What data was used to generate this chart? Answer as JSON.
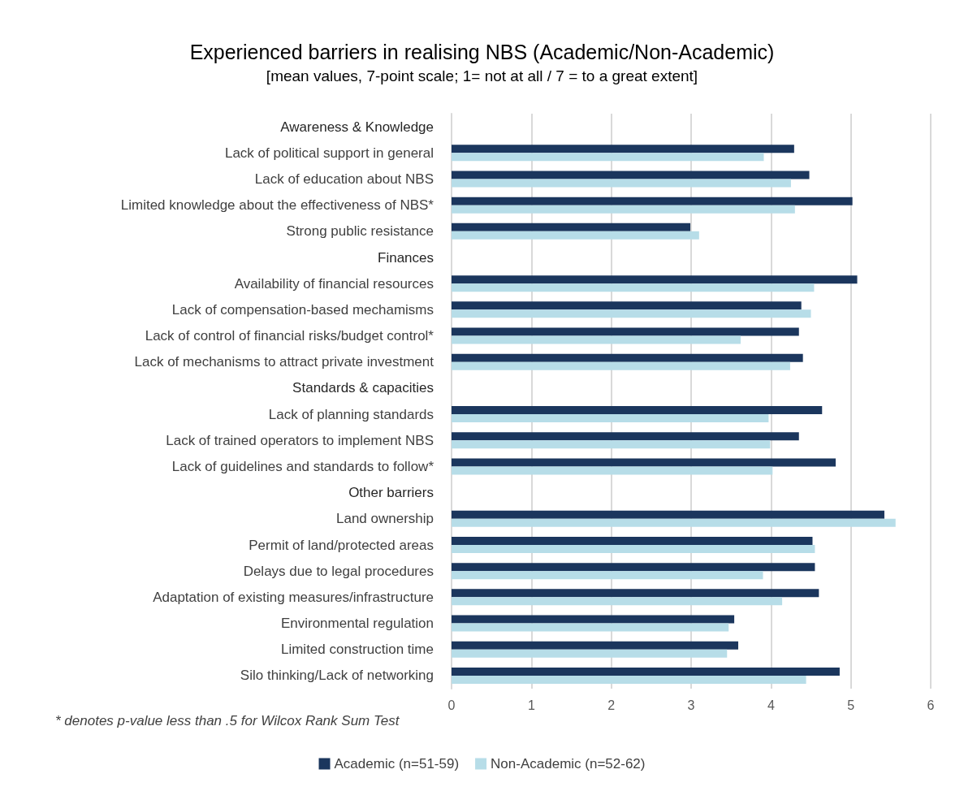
{
  "chart_data": {
    "type": "bar",
    "orientation": "horizontal",
    "title": "Experienced barriers in realising NBS (Academic/Non-Academic)",
    "subtitle": "[mean values, 7-point scale; 1= not at all / 7 = to a great extent]",
    "categories": [
      "Awareness & Knowledge",
      "Lack of political support in general",
      "Lack of education about NBS",
      "Limited knowledge about the effectiveness of NBS*",
      "Strong public resistance",
      "Finances",
      "Availability of financial resources",
      "Lack of compensation-based mechamisms",
      "Lack of control of financial risks/budget control*",
      "Lack of mechanisms to attract private investment",
      "Standards & capacities",
      "Lack of planning standards",
      "Lack of trained operators to implement NBS",
      "Lack of guidelines and standards to follow*",
      "Other barriers",
      "Land ownership",
      "Permit of land/protected areas",
      "Delays due to legal procedures",
      "Adaptation of existing measures/infrastructure",
      "Environmental regulation",
      "Limited construction time",
      "Silo thinking/Lack of networking"
    ],
    "series": [
      {
        "name": "Academic (n=51-59)",
        "color": "#1b365d",
        "values": [
          null,
          4.29,
          4.48,
          5.02,
          2.99,
          null,
          5.08,
          4.38,
          4.35,
          4.4,
          null,
          4.64,
          4.35,
          4.81,
          null,
          5.42,
          4.52,
          4.55,
          4.6,
          3.54,
          3.59,
          4.86
        ]
      },
      {
        "name": "Non-Academic (n=52-62)",
        "color": "#b7dde8",
        "values": [
          null,
          3.91,
          4.25,
          4.3,
          3.1,
          null,
          4.54,
          4.5,
          3.62,
          4.24,
          null,
          3.97,
          3.99,
          4.02,
          null,
          5.56,
          4.55,
          3.9,
          4.14,
          3.47,
          3.45,
          4.44
        ]
      }
    ],
    "xlim": [
      0,
      6
    ],
    "xticks": [
      0,
      1,
      2,
      3,
      4,
      5,
      6
    ],
    "grid": "x",
    "legend": "bottom",
    "annotations": [
      "* denotes p-value less than .5 for Wilcox Rank Sum Test"
    ]
  }
}
